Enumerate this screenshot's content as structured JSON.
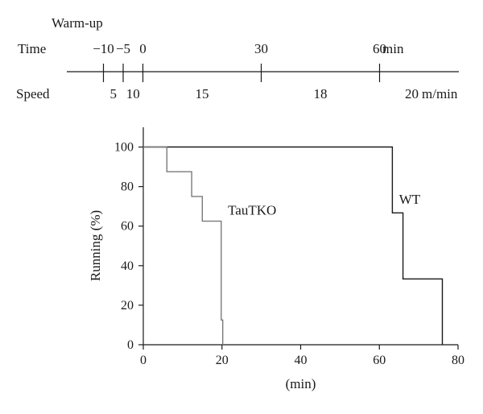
{
  "protocol": {
    "warmup_label": "Warm-up",
    "time_label": "Time",
    "speed_label": "Speed",
    "time_unit": "min",
    "speed_unit": "m/min",
    "time_ticks": [
      {
        "text": "−10",
        "time": -10
      },
      {
        "text": "−5",
        "time": -5
      },
      {
        "text": "0",
        "time": 0
      },
      {
        "text": "30",
        "time": 30
      },
      {
        "text": "60",
        "time": 60
      }
    ],
    "speeds": [
      {
        "text": "5",
        "from": -10,
        "to": -5
      },
      {
        "text": "10",
        "from": -5,
        "to": 0
      },
      {
        "text": "15",
        "from": 0,
        "to": 30
      },
      {
        "text": "18",
        "from": 30,
        "to": 60
      },
      {
        "text": "20",
        "from": 60,
        "to": null
      }
    ]
  },
  "chart_data": {
    "type": "line",
    "title": "",
    "xlabel": "(min)",
    "ylabel": "Running (%)",
    "xlim": [
      0,
      80
    ],
    "ylim": [
      0,
      110
    ],
    "xticks": [
      0,
      20,
      40,
      60,
      80
    ],
    "yticks": [
      0,
      20,
      40,
      60,
      80,
      100
    ],
    "grid": false,
    "legend": "none",
    "series": [
      {
        "name": "WT",
        "color": "#1a1a1a",
        "step": true,
        "x": [
          0,
          63.3,
          63.3,
          66,
          66,
          76,
          76
        ],
        "y": [
          100,
          100,
          66.7,
          66.7,
          33.3,
          33.3,
          0
        ]
      },
      {
        "name": "TauTKO",
        "color": "#7a7a7a",
        "step": true,
        "x": [
          0,
          6,
          6,
          12.3,
          12.3,
          15,
          15,
          19.8,
          19.8,
          20.2,
          20.2
        ],
        "y": [
          100,
          100,
          87.5,
          87.5,
          75,
          75,
          62.5,
          62.5,
          12.5,
          12.5,
          0
        ]
      }
    ]
  }
}
